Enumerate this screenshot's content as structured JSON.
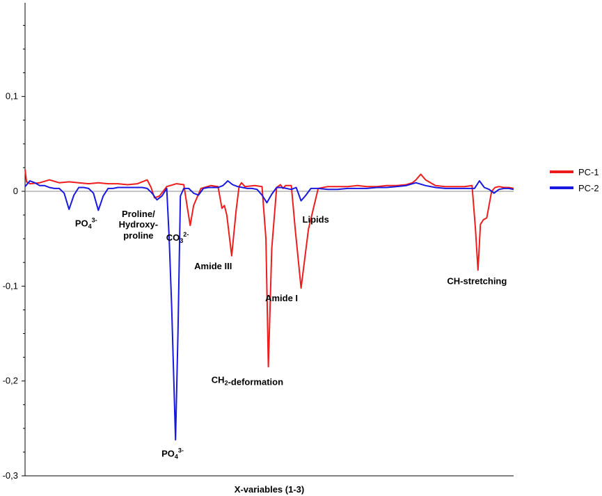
{
  "chart_data": {
    "type": "line",
    "title": "",
    "xlabel": "X-variables (1-3)",
    "ylabel": "",
    "ylim": [
      -0.3,
      0.2
    ],
    "xlim": [
      0,
      100
    ],
    "yticks": [
      {
        "value": 0.1,
        "label": "0,1"
      },
      {
        "value": 0,
        "label": "0"
      },
      {
        "value": -0.1,
        "label": "-0,1"
      },
      {
        "value": -0.2,
        "label": "-0,2"
      },
      {
        "value": -0.3,
        "label": "-0,3"
      }
    ],
    "legend_position": "right",
    "zero_line": true,
    "series": [
      {
        "name": "PC-1",
        "color": "#ee1c1c",
        "x": [
          0,
          0.3,
          1,
          3,
          5,
          7,
          9,
          11,
          13,
          15,
          17,
          19,
          21,
          23,
          25,
          25.8,
          26.5,
          27.5,
          29,
          31,
          32.5,
          33.3,
          33.8,
          34.5,
          36,
          38,
          39.5,
          40.3,
          40.8,
          41.3,
          42.3,
          43.2,
          43.8,
          44.3,
          45,
          47,
          48.5,
          49.3,
          49.8,
          50.5,
          51.5,
          52.3,
          52.8,
          53.3,
          54.5,
          55.3,
          56.5,
          58,
          60,
          62,
          64,
          66,
          68,
          70,
          72,
          74,
          76,
          78,
          79.3,
          80,
          81,
          82,
          84,
          86,
          88,
          90,
          91.5,
          92.2,
          92.7,
          93.2,
          93.8,
          94.5,
          95.5,
          96.2,
          97,
          98,
          99,
          100
        ],
        "y": [
          0.023,
          0.01,
          0.008,
          0.009,
          0.012,
          0.009,
          0.01,
          0.009,
          0.008,
          0.009,
          0.008,
          0.008,
          0.007,
          0.008,
          0.012,
          0.004,
          -0.007,
          -0.005,
          0.005,
          0.008,
          0.007,
          -0.02,
          -0.036,
          -0.015,
          0.003,
          0.006,
          0.005,
          -0.018,
          -0.015,
          -0.025,
          -0.068,
          -0.02,
          0.005,
          0.009,
          0.005,
          0.006,
          0.005,
          -0.05,
          -0.185,
          -0.06,
          0.004,
          0.007,
          0.003,
          0.006,
          0.006,
          -0.04,
          -0.102,
          -0.04,
          0.003,
          0.005,
          0.005,
          0.005,
          0.006,
          0.005,
          0.005,
          0.006,
          0.006,
          0.007,
          0.009,
          0.012,
          0.018,
          0.012,
          0.006,
          0.005,
          0.005,
          0.005,
          0.006,
          -0.04,
          -0.083,
          -0.035,
          -0.03,
          -0.028,
          0.0,
          0.004,
          0.005,
          0.004,
          0.004,
          0.003
        ]
      },
      {
        "name": "PC-2",
        "color": "#1818e0",
        "x": [
          0,
          1,
          2,
          3,
          4,
          5,
          6,
          7,
          8,
          9,
          10,
          11,
          12,
          13,
          14,
          15,
          16,
          17,
          18,
          19,
          20,
          21,
          22,
          23,
          24,
          25,
          26,
          27,
          28,
          29,
          29.5,
          30,
          30.8,
          31.3,
          31.8,
          32.5,
          33.5,
          34.5,
          35.5,
          36.5,
          37.5,
          38.5,
          39.5,
          40.5,
          41.5,
          42.5,
          43.5,
          44.5,
          45.5,
          46.5,
          47.5,
          48.5,
          49.5,
          50.5,
          51.5,
          52.5,
          53.5,
          54.5,
          55.5,
          56.5,
          57.5,
          58.5,
          60,
          62,
          64,
          66,
          68,
          70,
          72,
          74,
          76,
          78,
          80,
          82,
          84,
          86,
          88,
          90,
          92,
          93,
          94,
          95,
          96,
          97,
          98,
          99,
          100
        ],
        "y": [
          0.005,
          0.011,
          0.009,
          0.006,
          0.006,
          0.004,
          0.003,
          0.003,
          -0.002,
          -0.019,
          -0.004,
          0.004,
          0.004,
          0.003,
          -0.002,
          -0.02,
          -0.005,
          0.003,
          0.003,
          0.004,
          0.004,
          0.004,
          0.004,
          0.004,
          0.004,
          0.003,
          -0.002,
          -0.009,
          -0.005,
          0.003,
          -0.05,
          -0.12,
          -0.262,
          -0.15,
          -0.005,
          0.003,
          0.003,
          -0.002,
          -0.004,
          0.003,
          0.004,
          0.004,
          0.004,
          0.006,
          0.011,
          0.007,
          0.005,
          0.004,
          0.003,
          0.003,
          0.002,
          -0.004,
          -0.012,
          -0.003,
          0.004,
          0.004,
          0.003,
          0.002,
          0.004,
          -0.01,
          -0.004,
          0.003,
          0.003,
          0.002,
          0.002,
          0.003,
          0.003,
          0.003,
          0.004,
          0.004,
          0.005,
          0.006,
          0.009,
          0.006,
          0.004,
          0.003,
          0.003,
          0.003,
          0.003,
          0.011,
          0.004,
          0.002,
          -0.002,
          0.002,
          0.003,
          0.003,
          0.002
        ]
      }
    ],
    "annotations": [
      {
        "x": 12.5,
        "y": -0.037,
        "parts": [
          {
            "t": "PO"
          },
          {
            "t": "4",
            "sub": true
          },
          {
            "t": "3-",
            "sup": true
          }
        ]
      },
      {
        "x": 23.2,
        "y": -0.027,
        "parts": [
          {
            "t": "Proline/"
          }
        ]
      },
      {
        "x": 23.2,
        "y": -0.038,
        "parts": [
          {
            "t": "Hydroxy-"
          }
        ]
      },
      {
        "x": 23.2,
        "y": -0.05,
        "parts": [
          {
            "t": "proline"
          }
        ]
      },
      {
        "x": 31.2,
        "y": -0.052,
        "parts": [
          {
            "t": "CO"
          },
          {
            "t": "3",
            "sub": true
          },
          {
            "t": "2-",
            "sup": true
          }
        ]
      },
      {
        "x": 38.5,
        "y": -0.082,
        "parts": [
          {
            "t": "Amide III"
          }
        ]
      },
      {
        "x": 59.5,
        "y": -0.033,
        "parts": [
          {
            "t": "Lipids"
          }
        ]
      },
      {
        "x": 52.5,
        "y": -0.116,
        "parts": [
          {
            "t": "Amide I"
          }
        ]
      },
      {
        "x": 92.5,
        "y": -0.098,
        "parts": [
          {
            "t": "CH-stretching"
          }
        ]
      },
      {
        "x": 45.5,
        "y": -0.202,
        "parts": [
          {
            "t": "CH"
          },
          {
            "t": "2",
            "sub": true
          },
          {
            "t": "-deformation"
          }
        ]
      },
      {
        "x": 30.2,
        "y": -0.28,
        "parts": [
          {
            "t": "PO"
          },
          {
            "t": "4",
            "sub": true
          },
          {
            "t": "3-",
            "sup": true
          }
        ]
      }
    ]
  }
}
